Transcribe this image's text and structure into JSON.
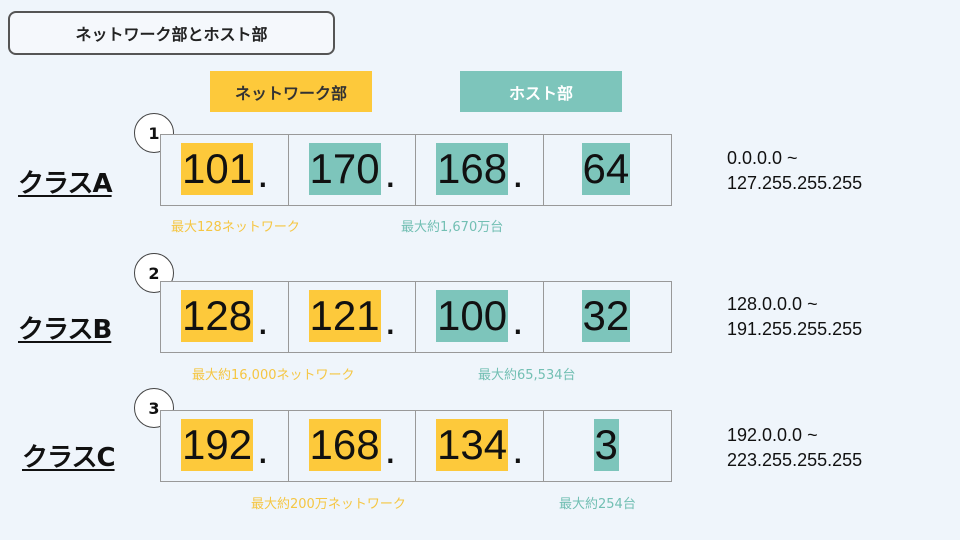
{
  "title": "ネットワーク部とホスト部",
  "legend": {
    "network": "ネットワーク部",
    "host": "ホスト部"
  },
  "colors": {
    "network": "#fdc93b",
    "host": "#7dc5bb"
  },
  "classes": [
    {
      "label": "クラスA",
      "number": "1",
      "octets": [
        {
          "value": "101",
          "dot": ".",
          "part": "network"
        },
        {
          "value": "170",
          "dot": ".",
          "part": "host"
        },
        {
          "value": "168",
          "dot": ".",
          "part": "host"
        },
        {
          "value": "64",
          "dot": "",
          "part": "host"
        }
      ],
      "network_note": "最大128ネットワーク",
      "host_note": "最大約1,670万台",
      "range_start": "0.0.0.0 ~",
      "range_end": "127.255.255.255"
    },
    {
      "label": "クラスB",
      "number": "2",
      "octets": [
        {
          "value": "128",
          "dot": ".",
          "part": "network"
        },
        {
          "value": "121",
          "dot": ".",
          "part": "network"
        },
        {
          "value": "100",
          "dot": ".",
          "part": "host"
        },
        {
          "value": "32",
          "dot": "",
          "part": "host"
        }
      ],
      "network_note": "最大約16,000ネットワーク",
      "host_note": "最大約65,534台",
      "range_start": "128.0.0.0 ~",
      "range_end": "191.255.255.255"
    },
    {
      "label": "クラスC",
      "number": "3",
      "octets": [
        {
          "value": "192",
          "dot": ".",
          "part": "network"
        },
        {
          "value": "168",
          "dot": ".",
          "part": "network"
        },
        {
          "value": "134",
          "dot": ".",
          "part": "network"
        },
        {
          "value": "3",
          "dot": "",
          "part": "host"
        }
      ],
      "network_note": "最大約200万ネットワーク",
      "host_note": "最大約254台",
      "range_start": "192.0.0.0 ~",
      "range_end": "223.255.255.255"
    }
  ]
}
